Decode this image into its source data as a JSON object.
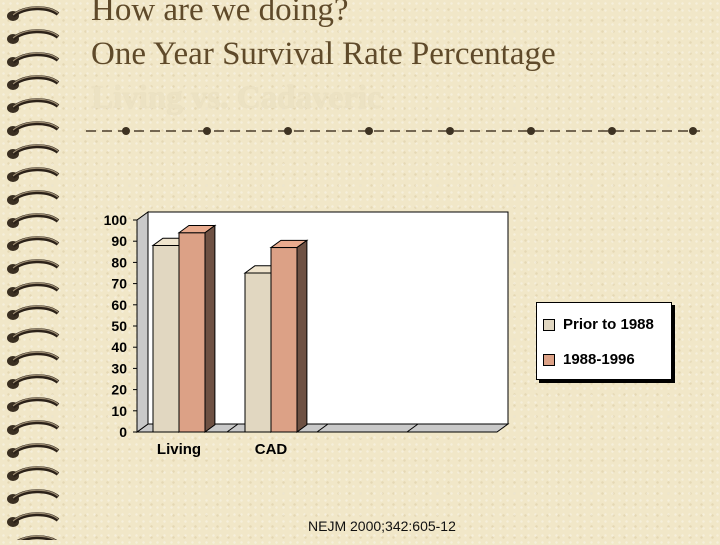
{
  "slide": {
    "title_line1": "How are we doing?",
    "title_line2": "One Year Survival Rate Percentage",
    "title_line3": "Living vs. Cadaveric",
    "source": "NEJM 2000;342:605-12"
  },
  "colors": {
    "background": "#f1e7c8",
    "title_text": "#5f4a2a",
    "series_prior": "#e1d7c1",
    "series_recent": "#dca186"
  },
  "chart_data": {
    "type": "bar",
    "title": "",
    "xlabel": "",
    "ylabel": "",
    "categories": [
      "Living",
      "CAD"
    ],
    "series": [
      {
        "name": "Prior to 1988",
        "values": [
          88,
          75
        ]
      },
      {
        "name": "1988-1996",
        "values": [
          94,
          87
        ]
      }
    ],
    "ylim": [
      0,
      100
    ],
    "yticks": [
      0,
      10,
      20,
      30,
      40,
      50,
      60,
      70,
      80,
      90,
      100
    ],
    "grid": false,
    "legend": "right",
    "style": "3d"
  }
}
